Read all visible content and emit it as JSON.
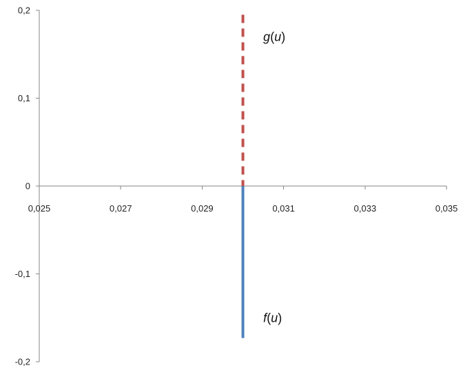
{
  "chart_data": {
    "type": "line",
    "title": "",
    "xlabel": "",
    "ylabel": "",
    "xlim": [
      0.025,
      0.035
    ],
    "ylim": [
      -0.2,
      0.2
    ],
    "x_ticks": [
      {
        "value": 0.025,
        "label": "0,025"
      },
      {
        "value": 0.027,
        "label": "0,027"
      },
      {
        "value": 0.029,
        "label": "0,029"
      },
      {
        "value": 0.031,
        "label": "0,031"
      },
      {
        "value": 0.033,
        "label": "0,033"
      },
      {
        "value": 0.035,
        "label": "0,035"
      }
    ],
    "y_ticks": [
      {
        "value": 0.2,
        "label": "0,2"
      },
      {
        "value": 0.1,
        "label": "0,1"
      },
      {
        "value": 0,
        "label": "0"
      },
      {
        "value": -0.1,
        "label": "-0,1"
      },
      {
        "value": -0.2,
        "label": "-0,2"
      }
    ],
    "grid": false,
    "legend": "none",
    "series": [
      {
        "name": "g(u)",
        "label_fn": "g",
        "label_arg": "u",
        "color": "#c0504d",
        "style": "dashed",
        "label_pos": {
          "x": 0.0305,
          "y": 0.17
        },
        "points": [
          {
            "x": 0.03,
            "y": 0.195
          },
          {
            "x": 0.03,
            "y": 0
          }
        ]
      },
      {
        "name": "f(u)",
        "label_fn": "f",
        "label_arg": "u",
        "color": "#4f81bd",
        "style": "solid",
        "label_pos": {
          "x": 0.0305,
          "y": -0.15
        },
        "points": [
          {
            "x": 0.03,
            "y": 0
          },
          {
            "x": 0.03,
            "y": -0.173
          }
        ]
      }
    ]
  }
}
